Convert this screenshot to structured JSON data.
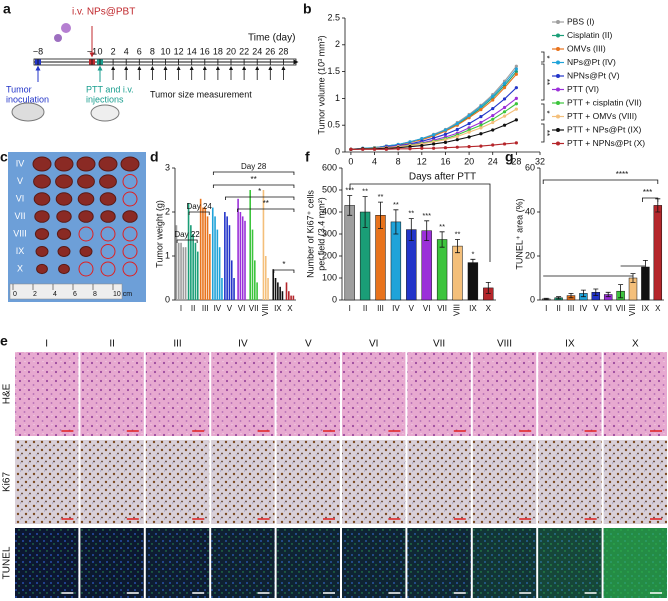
{
  "panel_labels": [
    "a",
    "b",
    "c",
    "d",
    "e",
    "f",
    "g"
  ],
  "timeline": {
    "axis_label": "Time (day)",
    "ticks": [
      {
        "value": -8,
        "label": "−8"
      },
      {
        "value": -1,
        "label": "−1"
      },
      0,
      2,
      4,
      6,
      8,
      10,
      12,
      14,
      16,
      18,
      20,
      22,
      24,
      26,
      28
    ],
    "injection_label": "i.v. NPs@PBT",
    "inoculation_label": [
      "Tumor",
      "inoculation"
    ],
    "treatment_label": [
      "PTT and i.v.",
      "injections"
    ],
    "measurement_label": "Tumor size measurement"
  },
  "tumor_photo": {
    "rows": [
      "IV",
      "V",
      "VI",
      "VII",
      "VIII",
      "IX",
      "X"
    ],
    "ruler_labels": [
      "0",
      "2",
      "4",
      "6",
      "8",
      "10 cm"
    ]
  },
  "histology": {
    "columns": [
      "I",
      "II",
      "III",
      "IV",
      "V",
      "VI",
      "VII",
      "VIII",
      "IX",
      "X"
    ],
    "rows": [
      "H&E",
      "Ki67",
      "TUNEL"
    ]
  },
  "chart_data": [
    {
      "type": "line",
      "xlabel": "Days after PTT",
      "ylabel": "Tumor volume (10³ mm³)",
      "x": [
        0,
        2,
        4,
        6,
        8,
        10,
        12,
        14,
        16,
        18,
        20,
        22,
        24,
        26,
        28
      ],
      "xlim": [
        -1,
        32
      ],
      "xticks": [
        0,
        4,
        8,
        12,
        16,
        20,
        24,
        28,
        32
      ],
      "ylim": [
        0,
        2.5
      ],
      "yticks": [
        0,
        0.5,
        1.0,
        1.5,
        2.0,
        2.5
      ],
      "legend": "right",
      "significance": [
        "*",
        "**",
        "*",
        "**"
      ],
      "series": [
        {
          "name": "PBS (I)",
          "color": "#9e9e9e",
          "values": [
            0.05,
            0.07,
            0.08,
            0.11,
            0.14,
            0.19,
            0.25,
            0.33,
            0.42,
            0.55,
            0.7,
            0.87,
            1.07,
            1.32,
            1.6
          ]
        },
        {
          "name": "Cisplatin (II)",
          "color": "#1a9e77",
          "values": [
            0.05,
            0.06,
            0.08,
            0.11,
            0.14,
            0.18,
            0.24,
            0.31,
            0.4,
            0.51,
            0.66,
            0.82,
            1.01,
            1.24,
            1.5
          ]
        },
        {
          "name": "OMVs (III)",
          "color": "#e8731c",
          "values": [
            0.05,
            0.06,
            0.08,
            0.11,
            0.13,
            0.18,
            0.23,
            0.3,
            0.39,
            0.5,
            0.64,
            0.79,
            0.97,
            1.2,
            1.45
          ]
        },
        {
          "name": "NPs@Pt (IV)",
          "color": "#1fa3d9",
          "values": [
            0.05,
            0.07,
            0.08,
            0.11,
            0.14,
            0.19,
            0.25,
            0.32,
            0.41,
            0.53,
            0.68,
            0.85,
            1.04,
            1.28,
            1.55
          ]
        },
        {
          "name": "NPNs@Pt (V)",
          "color": "#2335c9",
          "values": [
            0.05,
            0.06,
            0.07,
            0.1,
            0.12,
            0.15,
            0.2,
            0.26,
            0.33,
            0.42,
            0.53,
            0.66,
            0.81,
            0.99,
            1.2
          ]
        },
        {
          "name": "PTT (VI)",
          "color": "#9b30d9",
          "values": [
            0.05,
            0.06,
            0.07,
            0.09,
            0.11,
            0.14,
            0.17,
            0.22,
            0.28,
            0.35,
            0.45,
            0.55,
            0.68,
            0.83,
            1.0
          ]
        },
        {
          "name": "PTT + cisplatin (VII)",
          "color": "#3cc43c",
          "values": [
            0.05,
            0.06,
            0.07,
            0.08,
            0.1,
            0.13,
            0.16,
            0.2,
            0.25,
            0.32,
            0.41,
            0.5,
            0.61,
            0.75,
            0.9
          ]
        },
        {
          "name": "PTT + OMVs (VIII)",
          "color": "#f4bf7a",
          "values": [
            0.05,
            0.06,
            0.07,
            0.08,
            0.1,
            0.12,
            0.15,
            0.19,
            0.23,
            0.29,
            0.37,
            0.45,
            0.55,
            0.67,
            0.8
          ]
        },
        {
          "name": "PTT + NPs@Pt (IX)",
          "color": "#111111",
          "values": [
            0.05,
            0.06,
            0.06,
            0.07,
            0.08,
            0.1,
            0.12,
            0.15,
            0.18,
            0.23,
            0.28,
            0.34,
            0.41,
            0.5,
            0.6
          ]
        },
        {
          "name": "PTT + NPNs@Pt (X)",
          "color": "#b5262b",
          "values": [
            0.05,
            0.05,
            0.05,
            0.05,
            0.06,
            0.06,
            0.07,
            0.07,
            0.08,
            0.09,
            0.1,
            0.11,
            0.13,
            0.15,
            0.17
          ]
        }
      ]
    },
    {
      "type": "bar",
      "ylabel": "Tumor weight (g)",
      "categories": [
        "I",
        "II",
        "III",
        "IV",
        "V",
        "VI",
        "VII",
        "VIII",
        "IX",
        "X"
      ],
      "colors": [
        "#9e9e9e",
        "#1a9e77",
        "#e8731c",
        "#1fa3d9",
        "#2335c9",
        "#9b30d9",
        "#3cc43c",
        "#f4bf7a",
        "#111111",
        "#b5262b"
      ],
      "values": [
        [
          1.7,
          1.3,
          1.3,
          1.2,
          1.2
        ],
        [
          2.2,
          1.7,
          1.5,
          1.3,
          1.1
        ],
        [
          2.3,
          2.1,
          2.1,
          1.9,
          1.5
        ],
        [
          2.1,
          1.9,
          1.6,
          1.2,
          0.5
        ],
        [
          2.0,
          1.9,
          1.7,
          0.9,
          0.5
        ],
        [
          2.3,
          2.0,
          1.9,
          1.8
        ],
        [
          2.5,
          1.6,
          0.9,
          0.4
        ],
        [
          2.5,
          1.0,
          0.5
        ],
        [
          0.7,
          0.5,
          0.4,
          0.3,
          0.2
        ],
        [
          0.4,
          0.2,
          0.1,
          0.1
        ]
      ],
      "ylim": [
        0,
        3
      ],
      "yticks": [
        0,
        1,
        2,
        3
      ],
      "annotations": [
        "Day 22",
        "Day 24",
        "Day 28",
        "**",
        "*",
        "**",
        "*"
      ]
    },
    {
      "type": "bar",
      "ylabel": [
        "Number of Ki67⁺ cells",
        "per field (3.4 mm²)"
      ],
      "categories": [
        "I",
        "II",
        "III",
        "IV",
        "V",
        "VI",
        "VII",
        "VIII",
        "IX",
        "X"
      ],
      "colors": [
        "#9e9e9e",
        "#1a9e77",
        "#e8731c",
        "#1fa3d9",
        "#2335c9",
        "#9b30d9",
        "#3cc43c",
        "#f4bf7a",
        "#111111",
        "#b5262b"
      ],
      "values": [
        430,
        400,
        385,
        355,
        320,
        315,
        275,
        245,
        170,
        55
      ],
      "errors": [
        45,
        70,
        60,
        55,
        50,
        45,
        35,
        30,
        15,
        25
      ],
      "significance": [
        "***",
        "**",
        "**",
        "**",
        "**",
        "***",
        "**",
        "**",
        "*",
        null
      ],
      "ylim": [
        0,
        600
      ],
      "yticks": [
        0,
        100,
        200,
        300,
        400,
        500,
        600
      ]
    },
    {
      "type": "bar",
      "ylabel": "TUNEL⁺ area (%)",
      "categories": [
        "I",
        "II",
        "III",
        "IV",
        "V",
        "VI",
        "VII",
        "VIII",
        "IX",
        "X"
      ],
      "colors": [
        "#9e9e9e",
        "#1a9e77",
        "#e8731c",
        "#1fa3d9",
        "#2335c9",
        "#9b30d9",
        "#3cc43c",
        "#f4bf7a",
        "#111111",
        "#b5262b"
      ],
      "values": [
        0.5,
        1,
        2,
        3,
        3.5,
        2.5,
        4,
        10,
        15,
        43
      ],
      "errors": [
        0.3,
        0.5,
        1,
        1.5,
        1.5,
        1,
        3,
        2,
        3,
        3
      ],
      "annotations": [
        "****",
        "***"
      ],
      "ylim": [
        0,
        60
      ],
      "yticks": [
        0,
        20,
        40,
        60
      ]
    }
  ]
}
